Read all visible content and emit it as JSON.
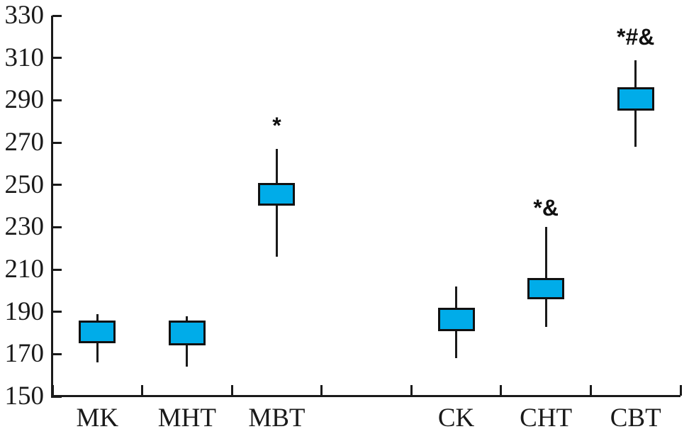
{
  "chart_data": {
    "type": "boxplot",
    "title": "",
    "xlabel": "",
    "ylabel": "",
    "ylim": [
      150,
      330
    ],
    "yticks": [
      150,
      170,
      190,
      210,
      230,
      250,
      270,
      290,
      310,
      330
    ],
    "slots": 7,
    "grid": false,
    "legend": "none",
    "box_fill": "#00ACE9",
    "line_color": "#1a1a1a",
    "series": [
      {
        "label": "MK",
        "slot": 0,
        "whisker_low": 166,
        "box_low": 175,
        "box_high": 186,
        "whisker_high": 189,
        "annotation": "",
        "annotation_y": null
      },
      {
        "label": "MHT",
        "slot": 1,
        "whisker_low": 164,
        "box_low": 174,
        "box_high": 186,
        "whisker_high": 188,
        "annotation": "",
        "annotation_y": null
      },
      {
        "label": "MBT",
        "slot": 2,
        "whisker_low": 216,
        "box_low": 240,
        "box_high": 251,
        "whisker_high": 267,
        "annotation": "*",
        "annotation_y": 278
      },
      {
        "label": "CK",
        "slot": 4,
        "whisker_low": 168,
        "box_low": 181,
        "box_high": 192,
        "whisker_high": 202,
        "annotation": "",
        "annotation_y": null
      },
      {
        "label": "CHT",
        "slot": 5,
        "whisker_low": 183,
        "box_low": 196,
        "box_high": 206,
        "whisker_high": 230,
        "annotation": "*&",
        "annotation_y": 239
      },
      {
        "label": "CBT",
        "slot": 6,
        "whisker_low": 268,
        "box_low": 285,
        "box_high": 296,
        "whisker_high": 309,
        "annotation": "*#&",
        "annotation_y": 320
      }
    ]
  }
}
